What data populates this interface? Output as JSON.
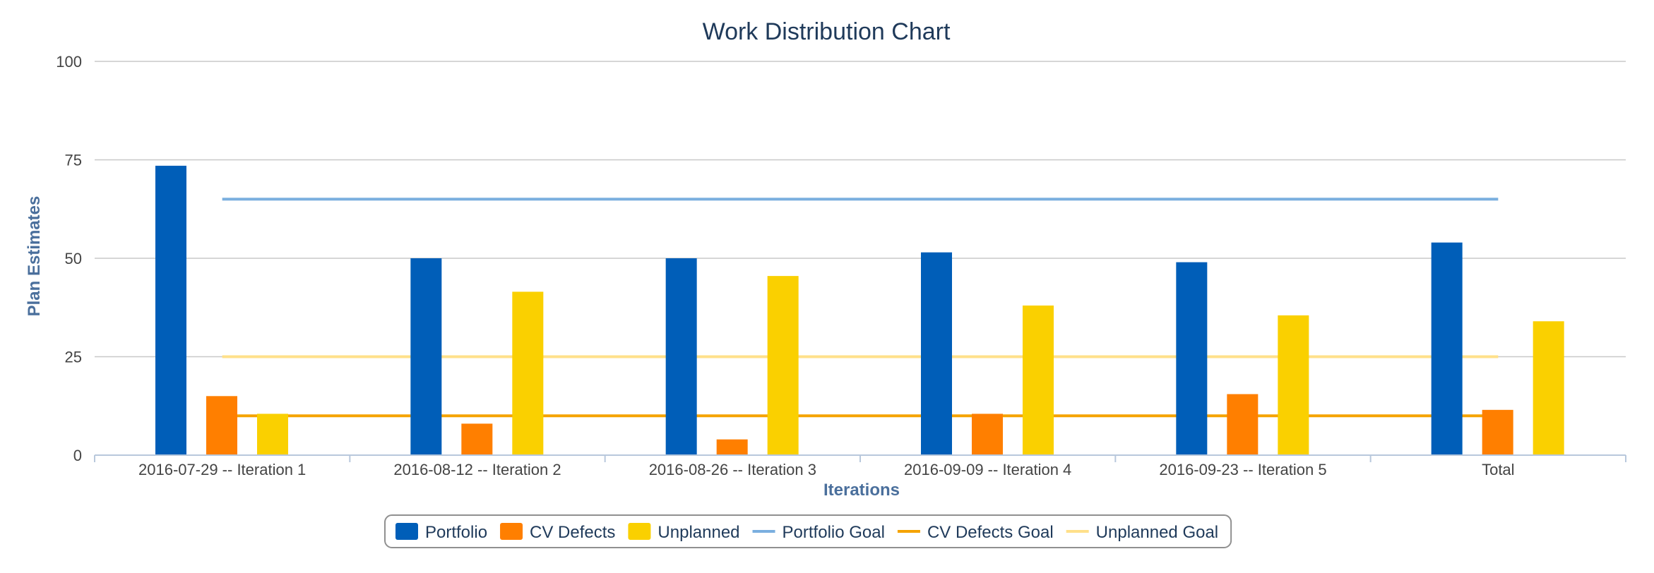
{
  "chart_data": {
    "type": "bar",
    "title": "Work Distribution Chart",
    "xlabel": "Iterations",
    "ylabel": "Plan Estimates",
    "ylim": [
      0,
      100
    ],
    "yticks": [
      0,
      25,
      50,
      75,
      100
    ],
    "grid": true,
    "legend_position": "bottom",
    "categories": [
      "2016-07-29 -- Iteration 1",
      "2016-08-12 -- Iteration 2",
      "2016-08-26 -- Iteration 3",
      "2016-09-09 -- Iteration 4",
      "2016-09-23 -- Iteration 5",
      "Total"
    ],
    "series": [
      {
        "name": "Portfolio",
        "type": "bar",
        "color": "#005eb8",
        "values": [
          73.5,
          50,
          50,
          51.5,
          49,
          54
        ]
      },
      {
        "name": "CV Defects",
        "type": "bar",
        "color": "#ff7f00",
        "values": [
          15,
          8,
          4,
          10.5,
          15.5,
          11.5
        ]
      },
      {
        "name": "Unplanned",
        "type": "bar",
        "color": "#fad000",
        "values": [
          10.5,
          41.5,
          45.5,
          38,
          35.5,
          34
        ]
      },
      {
        "name": "Portfolio Goal",
        "type": "line",
        "color": "#7aafdf",
        "value": 65
      },
      {
        "name": "CV Defects Goal",
        "type": "line",
        "color": "#f5a300",
        "value": 10
      },
      {
        "name": "Unplanned Goal",
        "type": "line",
        "color": "#ffe08a",
        "value": 25
      }
    ]
  }
}
